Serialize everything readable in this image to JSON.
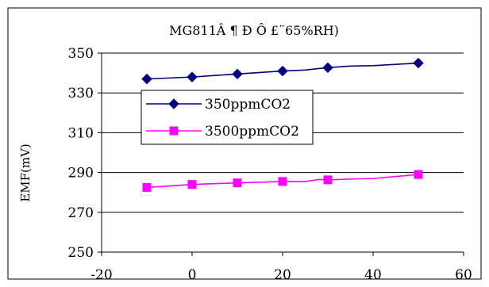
{
  "chart_data": {
    "type": "line",
    "title": "MG811Â ¶ Ð Ô £¨65%RH)",
    "xlabel": "",
    "ylabel": "EMF(mV)",
    "xlim": [
      -20,
      60
    ],
    "ylim": [
      250,
      350
    ],
    "x_ticks": [
      "-20",
      "0",
      "20",
      "40",
      "60"
    ],
    "y_ticks": [
      "250",
      "270",
      "290",
      "310",
      "330",
      "350"
    ],
    "grid": "horizontal",
    "legend_position": "upper-left-inside",
    "series": [
      {
        "name": "350ppmCO2",
        "color": "#000080",
        "marker": "diamond",
        "x": [
          -10,
          0,
          10,
          20,
          25,
          27,
          30,
          35,
          40,
          50
        ],
        "y": [
          337,
          338,
          339.5,
          341,
          341.5,
          342,
          342.7,
          343.5,
          343.7,
          345
        ],
        "marker_x": [
          -10,
          0,
          10,
          20,
          30,
          50
        ],
        "marker_y": [
          337,
          338,
          339.5,
          341,
          342.7,
          345
        ]
      },
      {
        "name": "3500ppmCO2",
        "color": "#ff00ff",
        "marker": "square",
        "x": [
          -10,
          0,
          10,
          20,
          25,
          28,
          30,
          35,
          40,
          50
        ],
        "y": [
          282.5,
          284,
          284.8,
          285.5,
          285.5,
          286.5,
          286.3,
          286.7,
          287,
          289
        ],
        "marker_x": [
          -10,
          0,
          10,
          20,
          30,
          50
        ],
        "marker_y": [
          282.5,
          284,
          284.8,
          285.5,
          286.3,
          289
        ]
      }
    ]
  }
}
